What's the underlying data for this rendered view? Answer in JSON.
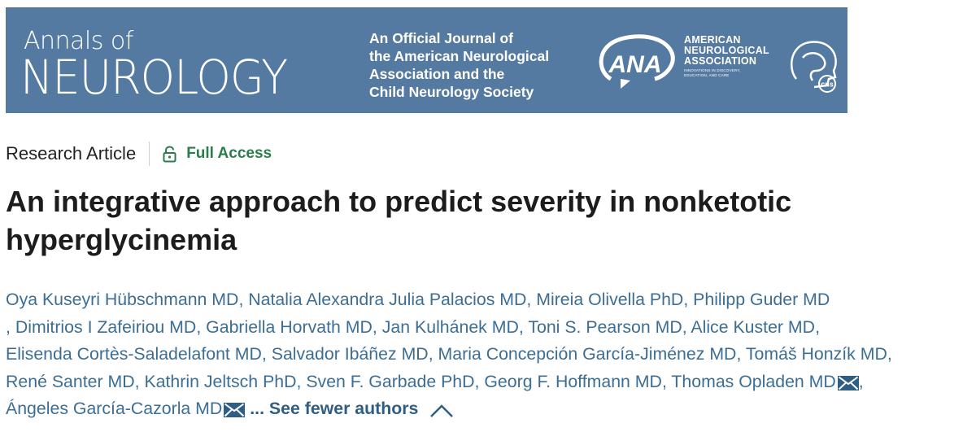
{
  "banner": {
    "journal_line1": "Annals of",
    "journal_line2": "NEUROLOGY",
    "tagline": [
      "An Official Journal of",
      "the American Neurological",
      "Association and the",
      "Child Neurology Society"
    ],
    "ana_abbrev": "ANA",
    "ana_name": [
      "AMERICAN",
      "NEUROLOGICAL",
      "ASSOCIATION"
    ],
    "ana_sub": [
      "INNOVATIONS IN DISCOVERY,",
      "EDUCATION, AND CARE"
    ],
    "cns_abbrev": "cns",
    "colors": {
      "background": "#557aa1",
      "text": "#ffffff"
    }
  },
  "article": {
    "type": "Research Article",
    "access": "Full Access",
    "title": "An integrative approach to predict severity in nonketotic hyperglycinemia",
    "authors": [
      "Oya Kuseyri Hübschmann MD",
      "Natalia Alexandra Julia Palacios MD",
      "Mireia Olivella PhD",
      "Philipp Guder MD",
      "Dimitrios I Zafeiriou MD",
      "Gabriella Horvath MD",
      "Jan Kulhánek MD",
      "Toni S. Pearson MD",
      "Alice Kuster MD",
      "Elisenda Cortès-Saladelafont MD",
      "Salvador Ibáñez MD",
      "Maria Concepción García-Jiménez MD",
      "Tomáš Honzík MD",
      "René Santer MD",
      "Kathrin Jeltsch PhD",
      "Sven F. Garbade PhD",
      "Georg F. Hoffmann MD",
      "Thomas Opladen MD",
      "Ángeles García-Cazorla MD"
    ],
    "ellipsis": "...",
    "see_fewer_label": "See fewer authors",
    "icons": {
      "access": "lock-open-icon",
      "mail": "mail-icon",
      "toggle": "chevron-up-icon"
    },
    "colors": {
      "author_link": "#3c6e95",
      "access": "#2c7d4e"
    }
  }
}
